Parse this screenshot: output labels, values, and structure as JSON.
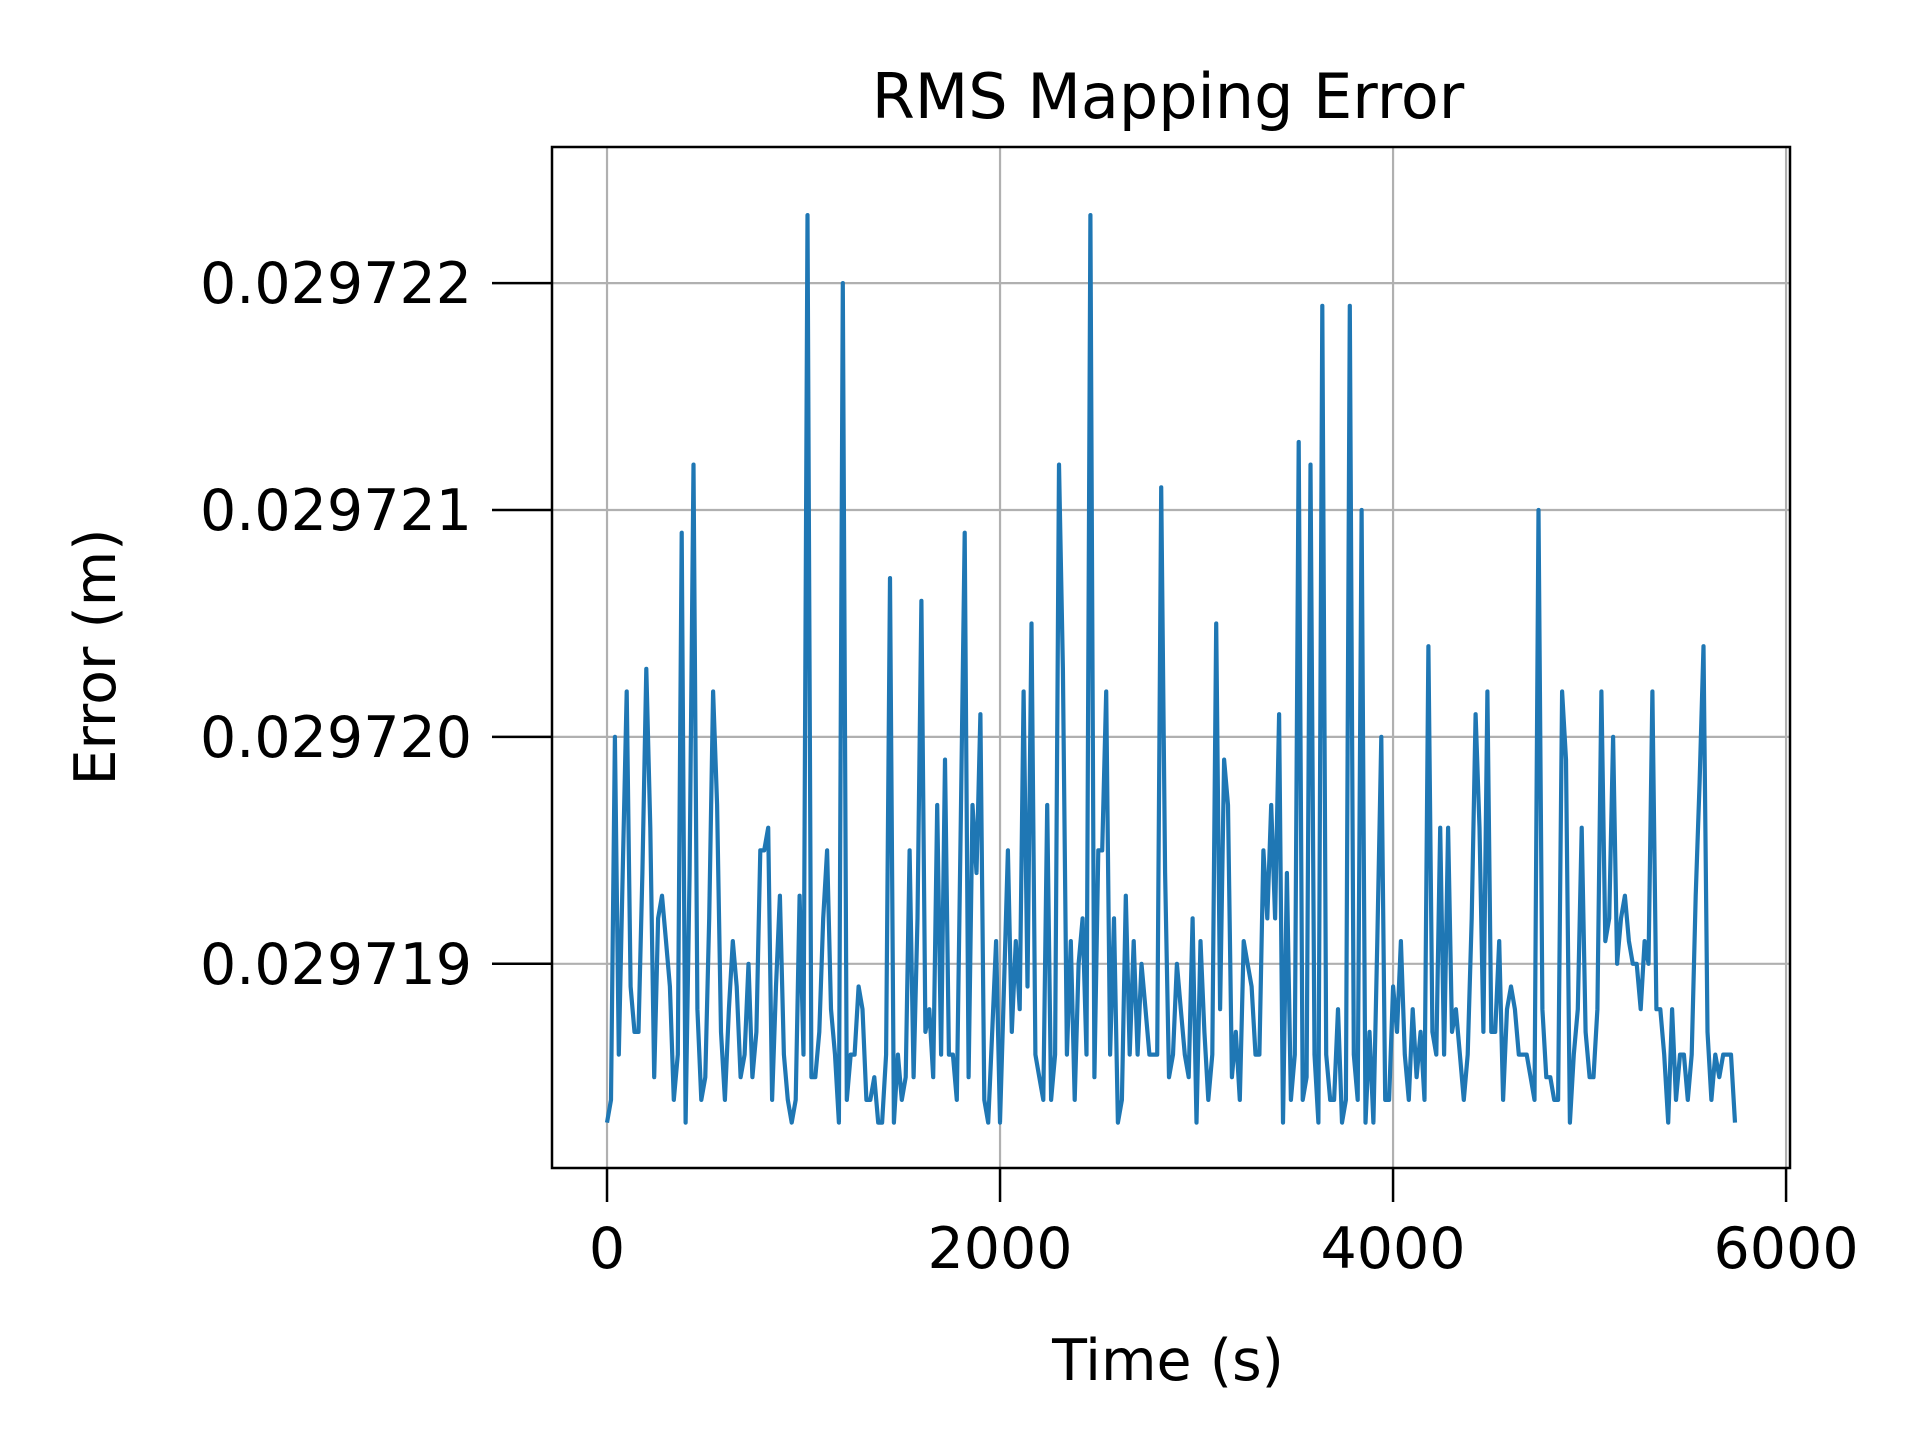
{
  "chart_data": {
    "type": "line",
    "title": "RMS Mapping Error",
    "xlabel": "Time (s)",
    "ylabel": "Error (m)",
    "xlim": [
      -280,
      6020
    ],
    "ylim": [
      0.0297181,
      0.0297226
    ],
    "x_ticks": [
      0,
      2000,
      4000,
      6000
    ],
    "x_tick_labels": [
      "0",
      "2000",
      "4000",
      "6000"
    ],
    "y_ticks": [
      0.029719,
      0.02972,
      0.029721,
      0.029722
    ],
    "y_tick_labels": [
      "0.029719",
      "0.029720",
      "0.029721",
      "0.029722"
    ],
    "grid": true,
    "colors": {
      "series": "#1f77b4"
    },
    "series": [
      {
        "x": [
          0,
          20,
          40,
          60,
          80,
          100,
          120,
          140,
          160,
          180,
          200,
          220,
          240,
          260,
          280,
          300,
          320,
          340,
          360,
          380,
          400,
          420,
          440,
          460,
          480,
          500,
          520,
          540,
          560,
          580,
          600,
          620,
          640,
          660,
          680,
          700,
          720,
          740,
          760,
          780,
          800,
          820,
          840,
          860,
          880,
          900,
          920,
          940,
          960,
          980,
          1000,
          1020,
          1040,
          1060,
          1080,
          1100,
          1120,
          1140,
          1160,
          1180,
          1200,
          1220,
          1240,
          1260,
          1280,
          1300,
          1320,
          1340,
          1360,
          1380,
          1400,
          1420,
          1440,
          1460,
          1480,
          1500,
          1520,
          1540,
          1560,
          1580,
          1600,
          1620,
          1640,
          1660,
          1680,
          1700,
          1720,
          1740,
          1760,
          1780,
          1800,
          1820,
          1840,
          1860,
          1880,
          1900,
          1920,
          1940,
          1960,
          1980,
          2000,
          2020,
          2040,
          2060,
          2080,
          2100,
          2120,
          2140,
          2160,
          2180,
          2200,
          2220,
          2240,
          2260,
          2280,
          2300,
          2320,
          2340,
          2360,
          2380,
          2400,
          2420,
          2440,
          2460,
          2480,
          2500,
          2520,
          2540,
          2560,
          2580,
          2600,
          2620,
          2640,
          2660,
          2680,
          2700,
          2720,
          2740,
          2760,
          2780,
          2800,
          2820,
          2840,
          2860,
          2880,
          2900,
          2920,
          2940,
          2960,
          2980,
          3000,
          3020,
          3040,
          3060,
          3080,
          3100,
          3120,
          3140,
          3160,
          3180,
          3200,
          3220,
          3240,
          3260,
          3280,
          3300,
          3320,
          3340,
          3360,
          3380,
          3400,
          3420,
          3440,
          3460,
          3480,
          3500,
          3520,
          3540,
          3560,
          3580,
          3600,
          3620,
          3640,
          3660,
          3680,
          3700,
          3720,
          3740,
          3760,
          3780,
          3800,
          3820,
          3840,
          3860,
          3880,
          3900,
          3920,
          3940,
          3960,
          3980,
          4000,
          4020,
          4040,
          4060,
          4080,
          4100,
          4120,
          4140,
          4160,
          4180,
          4200,
          4220,
          4240,
          4260,
          4280,
          4300,
          4320,
          4340,
          4360,
          4380,
          4400,
          4420,
          4440,
          4460,
          4480,
          4500,
          4520,
          4540,
          4560,
          4580,
          4600,
          4620,
          4640,
          4660,
          4680,
          4700,
          4720,
          4740,
          4760,
          4780,
          4800,
          4820,
          4840,
          4860,
          4880,
          4900,
          4920,
          4940,
          4960,
          4980,
          5000,
          5020,
          5040,
          5060,
          5080,
          5100,
          5120,
          5140,
          5160,
          5180,
          5200,
          5220,
          5240,
          5260,
          5280,
          5300,
          5320,
          5340,
          5360,
          5380,
          5400,
          5420,
          5440,
          5460,
          5480,
          5500,
          5520,
          5540,
          5560,
          5580,
          5600,
          5620,
          5640,
          5660,
          5680,
          5700,
          5720,
          5740
        ],
        "y": [
          0.0297183,
          0.0297184,
          0.02972,
          0.0297186,
          0.0297194,
          0.0297202,
          0.0297189,
          0.0297187,
          0.0297187,
          0.0297194,
          0.0297203,
          0.0297196,
          0.0297185,
          0.0297192,
          0.0297193,
          0.0297191,
          0.0297189,
          0.0297184,
          0.0297186,
          0.0297209,
          0.0297183,
          0.0297194,
          0.0297212,
          0.0297188,
          0.0297184,
          0.0297185,
          0.0297192,
          0.0297202,
          0.0297197,
          0.0297187,
          0.0297184,
          0.0297188,
          0.0297191,
          0.0297189,
          0.0297185,
          0.0297186,
          0.029719,
          0.0297185,
          0.0297187,
          0.0297195,
          0.0297195,
          0.0297196,
          0.0297184,
          0.0297189,
          0.0297193,
          0.0297186,
          0.0297184,
          0.0297183,
          0.0297184,
          0.0297193,
          0.0297186,
          0.0297223,
          0.0297185,
          0.0297185,
          0.0297187,
          0.0297192,
          0.0297195,
          0.0297188,
          0.0297186,
          0.0297183,
          0.029722,
          0.0297184,
          0.0297186,
          0.0297186,
          0.0297189,
          0.0297188,
          0.0297184,
          0.0297184,
          0.0297185,
          0.0297183,
          0.0297183,
          0.0297186,
          0.0297207,
          0.0297183,
          0.0297186,
          0.0297184,
          0.0297185,
          0.0297195,
          0.0297185,
          0.0297192,
          0.0297206,
          0.0297187,
          0.0297188,
          0.0297185,
          0.0297197,
          0.0297186,
          0.0297199,
          0.0297186,
          0.0297186,
          0.0297184,
          0.0297196,
          0.0297209,
          0.0297185,
          0.0297197,
          0.0297194,
          0.0297201,
          0.0297184,
          0.0297183,
          0.0297187,
          0.0297191,
          0.0297183,
          0.0297189,
          0.0297195,
          0.0297187,
          0.0297191,
          0.0297188,
          0.0297202,
          0.0297189,
          0.0297205,
          0.0297186,
          0.0297185,
          0.0297184,
          0.0297197,
          0.0297184,
          0.0297186,
          0.0297212,
          0.0297203,
          0.0297186,
          0.0297191,
          0.0297184,
          0.029719,
          0.0297192,
          0.0297186,
          0.0297223,
          0.0297185,
          0.0297195,
          0.0297195,
          0.0297202,
          0.0297186,
          0.0297192,
          0.0297183,
          0.0297184,
          0.0297193,
          0.0297186,
          0.0297191,
          0.0297186,
          0.029719,
          0.0297188,
          0.0297186,
          0.0297186,
          0.0297186,
          0.0297211,
          0.0297194,
          0.0297185,
          0.0297186,
          0.029719,
          0.0297188,
          0.0297186,
          0.0297185,
          0.0297192,
          0.0297183,
          0.0297191,
          0.0297187,
          0.0297184,
          0.0297186,
          0.0297205,
          0.0297188,
          0.0297199,
          0.0297197,
          0.0297185,
          0.0297187,
          0.0297184,
          0.0297191,
          0.029719,
          0.0297189,
          0.0297186,
          0.0297186,
          0.0297195,
          0.0297192,
          0.0297197,
          0.0297192,
          0.0297201,
          0.0297183,
          0.0297194,
          0.0297184,
          0.0297186,
          0.0297213,
          0.0297184,
          0.0297185,
          0.0297212,
          0.0297186,
          0.0297183,
          0.0297219,
          0.0297186,
          0.0297184,
          0.0297184,
          0.0297188,
          0.0297183,
          0.0297184,
          0.0297219,
          0.0297186,
          0.0297184,
          0.029721,
          0.0297183,
          0.0297187,
          0.0297183,
          0.0297191,
          0.02972,
          0.0297184,
          0.0297184,
          0.0297189,
          0.0297187,
          0.0297191,
          0.0297186,
          0.0297184,
          0.0297188,
          0.0297185,
          0.0297187,
          0.0297184,
          0.0297204,
          0.0297187,
          0.0297186,
          0.0297196,
          0.0297186,
          0.0297196,
          0.0297187,
          0.0297188,
          0.0297186,
          0.0297184,
          0.0297186,
          0.0297192,
          0.0297201,
          0.0297196,
          0.0297187,
          0.0297202,
          0.0297187,
          0.0297187,
          0.0297191,
          0.0297184,
          0.0297188,
          0.0297189,
          0.0297188,
          0.0297186,
          0.0297186,
          0.0297186,
          0.0297185,
          0.0297184,
          0.029721,
          0.0297188,
          0.0297185,
          0.0297185,
          0.0297184,
          0.0297184,
          0.0297202,
          0.0297199,
          0.0297183,
          0.0297186,
          0.0297188,
          0.0297196,
          0.0297187,
          0.0297185,
          0.0297185,
          0.0297188,
          0.0297202,
          0.0297191,
          0.0297192,
          0.02972,
          0.029719,
          0.0297192,
          0.0297193,
          0.0297191,
          0.029719,
          0.029719,
          0.0297188,
          0.0297191,
          0.029719,
          0.0297202,
          0.0297188,
          0.0297188,
          0.0297186,
          0.0297183,
          0.0297188,
          0.0297184,
          0.0297186,
          0.0297186,
          0.0297184,
          0.0297186,
          0.0297193,
          0.0297198,
          0.0297204,
          0.0297187,
          0.0297184,
          0.0297186,
          0.0297185,
          0.0297186,
          0.0297186,
          0.0297186,
          0.0297183
        ]
      }
    ]
  }
}
